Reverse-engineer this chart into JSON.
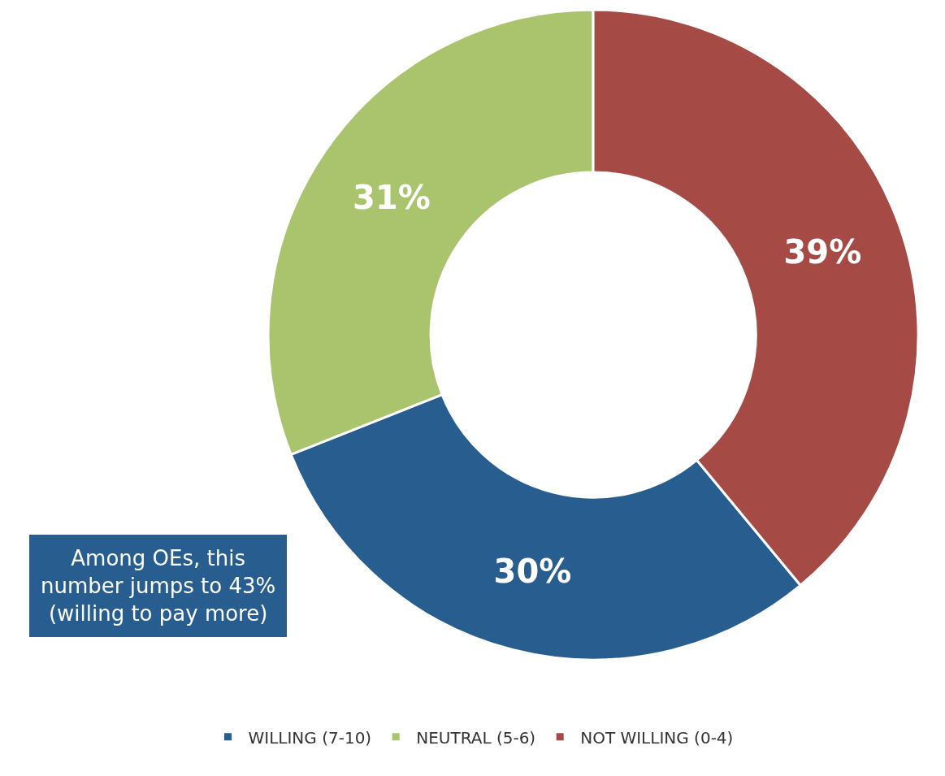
{
  "chart_data": {
    "type": "donut",
    "categories": [
      "WILLING (7-10)",
      "NEUTRAL (5-6)",
      "NOT WILLING (0-4)"
    ],
    "values": [
      30,
      31,
      39
    ],
    "colors": [
      "#285d8f",
      "#a9c46c",
      "#a64a45"
    ],
    "value_labels": [
      "30%",
      "31%",
      "39%"
    ],
    "legend": "bottom",
    "annotations": [
      "Among OEs, this\nnumber jumps to 43%\n(willing to pay more)"
    ]
  }
}
